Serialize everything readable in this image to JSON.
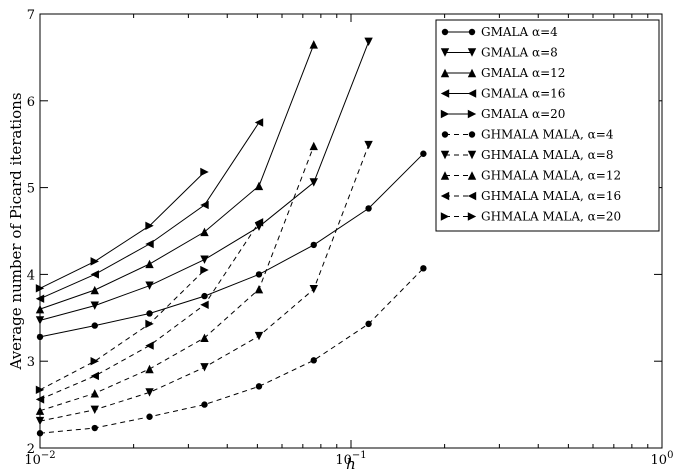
{
  "chart_data": {
    "type": "line",
    "xscale": "log",
    "xlim": [
      0.01,
      1
    ],
    "ylim": [
      2,
      7
    ],
    "xlabel": "h",
    "ylabel": "Average number of Picard iterations",
    "grid": false,
    "legend_position": "top-right",
    "x_ticks": [
      {
        "value": 0.01,
        "base": "10",
        "exp": "−2"
      },
      {
        "value": 0.1,
        "base": "10",
        "exp": "−1"
      },
      {
        "value": 1,
        "base": "10",
        "exp": "0"
      }
    ],
    "y_ticks": [
      {
        "value": 2,
        "label": "2"
      },
      {
        "value": 3,
        "label": "3"
      },
      {
        "value": 4,
        "label": "4"
      },
      {
        "value": 5,
        "label": "5"
      },
      {
        "value": 6,
        "label": "6"
      },
      {
        "value": 7,
        "label": "7"
      }
    ],
    "series": [
      {
        "name": "GMALA α=4",
        "style": "solid",
        "marker": "circle",
        "x": [
          0.01,
          0.015,
          0.0225,
          0.0338,
          0.0506,
          0.0759,
          0.1139,
          0.1709
        ],
        "y": [
          3.28,
          3.41,
          3.55,
          3.75,
          4.0,
          4.34,
          4.76,
          5.39
        ]
      },
      {
        "name": "GMALA α=8",
        "style": "solid",
        "marker": "tri_down",
        "x": [
          0.01,
          0.015,
          0.0225,
          0.0338,
          0.0506,
          0.0759,
          0.1139
        ],
        "y": [
          3.47,
          3.64,
          3.87,
          4.17,
          4.55,
          5.06,
          6.68
        ]
      },
      {
        "name": "GMALA α=12",
        "style": "solid",
        "marker": "tri_up",
        "x": [
          0.01,
          0.015,
          0.0225,
          0.0338,
          0.0506,
          0.0759
        ],
        "y": [
          3.6,
          3.82,
          4.12,
          4.49,
          5.02,
          6.65
        ]
      },
      {
        "name": "GMALA α=16",
        "style": "solid",
        "marker": "tri_left",
        "x": [
          0.01,
          0.015,
          0.0225,
          0.0338,
          0.0506
        ],
        "y": [
          3.72,
          4.0,
          4.35,
          4.8,
          5.75
        ]
      },
      {
        "name": "GMALA α=20",
        "style": "solid",
        "marker": "tri_right",
        "x": [
          0.01,
          0.015,
          0.0225,
          0.0338
        ],
        "y": [
          3.84,
          4.15,
          4.56,
          5.18
        ]
      },
      {
        "name": "GHMALA MALA, α=4",
        "style": "dashed",
        "marker": "circle",
        "x": [
          0.01,
          0.015,
          0.0225,
          0.0338,
          0.0506,
          0.0759,
          0.1139,
          0.1709
        ],
        "y": [
          2.17,
          2.23,
          2.36,
          2.5,
          2.71,
          3.01,
          3.43,
          4.07
        ]
      },
      {
        "name": "GHMALA MALA, α=8",
        "style": "dashed",
        "marker": "tri_down",
        "x": [
          0.01,
          0.015,
          0.0225,
          0.0338,
          0.0506,
          0.0759,
          0.1139
        ],
        "y": [
          2.31,
          2.44,
          2.64,
          2.93,
          3.29,
          3.83,
          5.49
        ]
      },
      {
        "name": "GHMALA MALA, α=12",
        "style": "dashed",
        "marker": "tri_up",
        "x": [
          0.01,
          0.015,
          0.0225,
          0.0338,
          0.0506,
          0.0759
        ],
        "y": [
          2.43,
          2.63,
          2.91,
          3.27,
          3.83,
          5.48
        ]
      },
      {
        "name": "GHMALA MALA, α=16",
        "style": "dashed",
        "marker": "tri_left",
        "x": [
          0.01,
          0.015,
          0.0225,
          0.0338,
          0.0506
        ],
        "y": [
          2.56,
          2.83,
          3.18,
          3.65,
          4.6
        ]
      },
      {
        "name": "GHMALA MALA, α=20",
        "style": "dashed",
        "marker": "tri_right",
        "x": [
          0.01,
          0.015,
          0.0225,
          0.0338
        ],
        "y": [
          2.67,
          3.0,
          3.43,
          4.05
        ]
      }
    ]
  }
}
